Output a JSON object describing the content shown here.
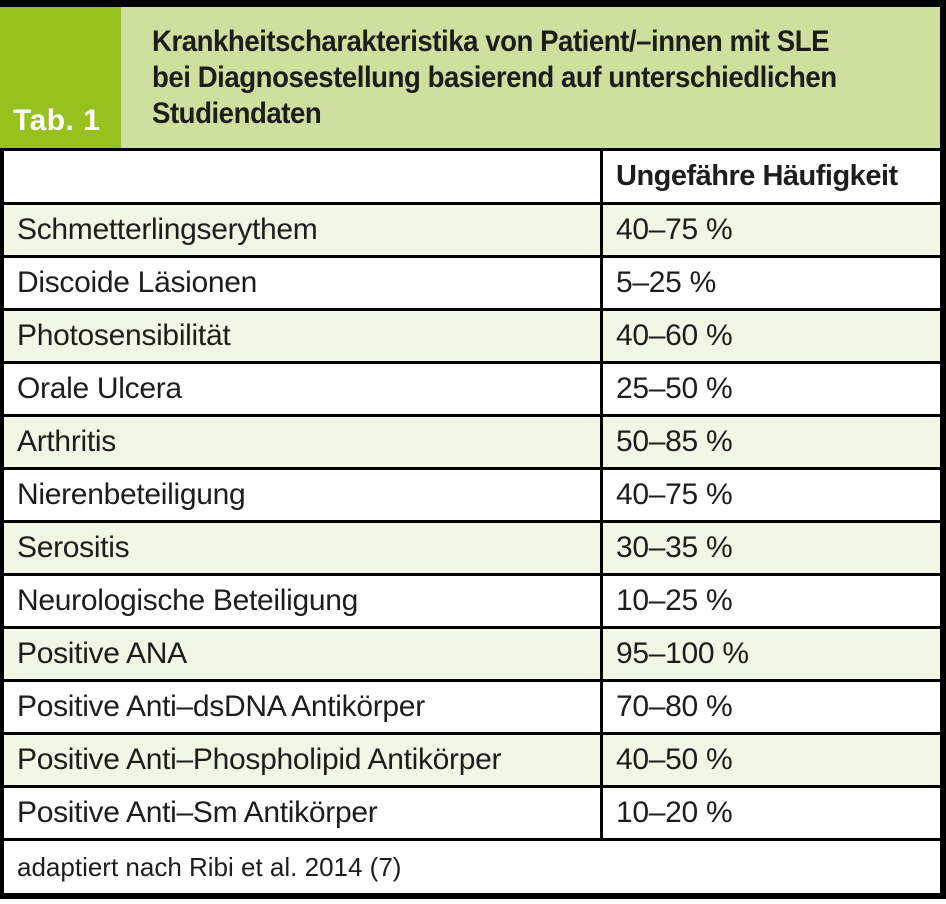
{
  "figure": {
    "tab_label": "Tab. 1",
    "title_lines": [
      "Krankheitscharakteristika von Patient/–innen mit SLE",
      "bei Diagnosestellung basierend auf unterschiedlichen",
      "Studiendaten"
    ]
  },
  "table": {
    "columns": {
      "characteristic": "",
      "frequency": "Ungefähre Häufigkeit"
    },
    "rows": [
      {
        "label": "Schmetterlingserythem",
        "value": "40–75 %"
      },
      {
        "label": "Discoide Läsionen",
        "value": "5–25 %"
      },
      {
        "label": "Photosensibilität",
        "value": "40–60 %"
      },
      {
        "label": "Orale Ulcera",
        "value": "25–50 %"
      },
      {
        "label": "Arthritis",
        "value": "50–85 %"
      },
      {
        "label": "Nierenbeteiligung",
        "value": "40–75 %"
      },
      {
        "label": "Serositis",
        "value": "30–35 %"
      },
      {
        "label": "Neurologische Beteiligung",
        "value": "10–25 %"
      },
      {
        "label": "Positive ANA",
        "value": "95–100 %"
      },
      {
        "label": "Positive Anti–dsDNA Antikörper",
        "value": "70–80 %"
      },
      {
        "label": "Positive Anti–Phospholipid Antikörper",
        "value": "40–50 %"
      },
      {
        "label": "Positive Anti–Sm Antikörper",
        "value": "10–20 %"
      }
    ],
    "source_note": "adaptiert nach Ribi et al. 2014 (7)"
  },
  "colors": {
    "accent-green": "#96c11e",
    "band-green": "#cfdf9e",
    "row-tint": "#f2f6e5",
    "border-black": "#000000",
    "text": "#1d1d1b"
  }
}
